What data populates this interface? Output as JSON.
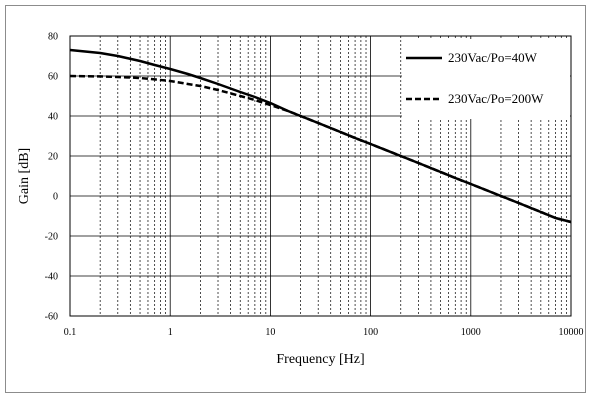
{
  "chart_data": {
    "type": "line",
    "title": "",
    "xlabel": "Frequency [Hz]",
    "ylabel": "Gain [dB]",
    "x_scale": "log",
    "xlim": [
      0.1,
      10000
    ],
    "ylim": [
      -60,
      80
    ],
    "x_ticks": [
      "0.1",
      "1",
      "10",
      "100",
      "1000",
      "10000"
    ],
    "y_ticks": [
      "-60",
      "-40",
      "-20",
      "0",
      "20",
      "40",
      "60",
      "80"
    ],
    "grid": true,
    "legend_position": "top-right",
    "series": [
      {
        "name": "230Vac/Po=40W",
        "style": "solid",
        "color": "#000000",
        "x": [
          0.1,
          0.2,
          0.3,
          0.5,
          0.7,
          1,
          1.5,
          2,
          3,
          5,
          7,
          10,
          15,
          20,
          30,
          50,
          70,
          100,
          200,
          300,
          500,
          700,
          1000,
          2000,
          3000,
          5000,
          7000,
          10000
        ],
        "y": [
          73,
          71.5,
          70,
          67.5,
          65.5,
          63.5,
          61,
          59,
          56,
          52,
          49.5,
          46.5,
          42.5,
          40,
          36.5,
          32,
          29,
          26,
          20,
          16.5,
          12,
          9,
          6,
          0,
          -3.5,
          -8,
          -11,
          -13
        ]
      },
      {
        "name": "230Vac/Po=200W",
        "style": "dashed",
        "color": "#000000",
        "x": [
          0.1,
          0.2,
          0.3,
          0.5,
          0.7,
          1,
          1.5,
          2,
          3,
          5,
          7,
          10,
          15,
          20,
          30,
          50,
          70,
          100,
          200,
          300,
          500,
          700,
          1000,
          2000,
          3000,
          5000,
          7000,
          10000
        ],
        "y": [
          60,
          59.8,
          59.5,
          59,
          58.3,
          57.5,
          56,
          55,
          53,
          50,
          48,
          45.5,
          42.5,
          40,
          36.5,
          32,
          29,
          26,
          20,
          16.5,
          12,
          9,
          6,
          0,
          -3.5,
          -8,
          -11,
          -13
        ]
      }
    ]
  }
}
